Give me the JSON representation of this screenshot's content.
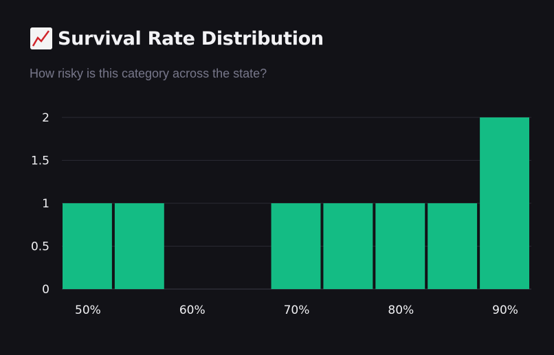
{
  "header": {
    "title_icon": "chart-increasing-emoji",
    "title": "Survival Rate Distribution",
    "subtitle": "How risky is this category across the state?"
  },
  "colors": {
    "background": "#121217",
    "bar": "#14bc84",
    "grid": "#2a2a33"
  },
  "chart_data": {
    "type": "bar",
    "title": "Survival Rate Distribution",
    "bins": [
      50,
      55,
      60,
      65,
      70,
      75,
      80,
      85,
      90
    ],
    "values": [
      1,
      1,
      0,
      0,
      1,
      1,
      1,
      1,
      2
    ],
    "x_tick_labels": [
      "50%",
      "60%",
      "70%",
      "80%",
      "90%"
    ],
    "y_ticks": [
      0,
      0.5,
      1,
      1.5,
      2
    ],
    "y_tick_labels": [
      "0",
      "0.5",
      "1",
      "1.5",
      "2"
    ],
    "ylim": [
      0,
      2
    ],
    "grid": "horizontal",
    "xlabel": "",
    "ylabel": ""
  }
}
